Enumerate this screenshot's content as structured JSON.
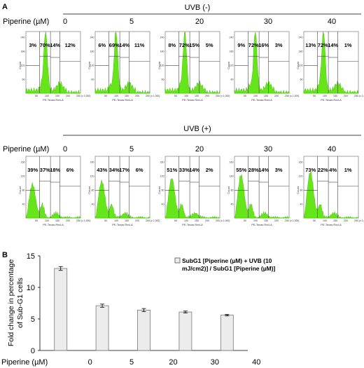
{
  "panel_a": {
    "label": "A",
    "conditions": [
      {
        "title": "UVB (-)",
        "row_label": "Piperine (µM)",
        "doses": [
          "0",
          "5",
          "20",
          "30",
          "40"
        ],
        "gates": [
          [
            "3%",
            "70%",
            "14%",
            "12%"
          ],
          [
            "6%",
            "69%",
            "14%",
            "11%"
          ],
          [
            "8%",
            "72%",
            "15%",
            "5%"
          ],
          [
            "9%",
            "72%",
            "16%",
            "3%"
          ],
          [
            "13%",
            "72%",
            "14%",
            "1%"
          ]
        ],
        "y_axis_label": "Count",
        "x_axis_label": "PE-Texas Red-A",
        "x_ticks": [
          "50",
          "100",
          "150",
          "200",
          "250"
        ],
        "x_unit": "(x 1,000)",
        "y_ticks": [
          "60",
          "120",
          "180",
          "240"
        ],
        "histogram_shape": "g1-peak"
      },
      {
        "title": "UVB (+)",
        "row_label": "Piperine (µM)",
        "doses": [
          "0",
          "5",
          "20",
          "30",
          "40"
        ],
        "gates": [
          [
            "39%",
            "37%",
            "18%",
            "6%"
          ],
          [
            "43%",
            "34%",
            "17%",
            "6%"
          ],
          [
            "51%",
            "33%",
            "14%",
            "2%"
          ],
          [
            "55%",
            "28%",
            "14%",
            "3%"
          ],
          [
            "73%",
            "22%",
            "4%",
            "1%"
          ]
        ],
        "y_axis_label": "Count",
        "x_axis_label": "PE-Texas Red-A",
        "x_ticks": [
          "50",
          "100",
          "150",
          "200",
          "250"
        ],
        "x_unit": "(x 1,000)",
        "y_ticks": [
          "40",
          "80",
          "120",
          "160"
        ],
        "histogram_shape": "subg1-rise"
      }
    ],
    "histogram_color": "#66e61a"
  },
  "panel_b": {
    "label": "B",
    "chart_data": {
      "type": "bar",
      "categories": [
        "0",
        "5",
        "20",
        "30",
        "40"
      ],
      "series": [
        {
          "name": "SubG1 [Piperine (µM) + UVB (10 mJ/cm2)] / SubG1 [Piperine (µM)]",
          "values": [
            13.0,
            7.1,
            6.4,
            6.1,
            5.6
          ],
          "errors": [
            0.3,
            0.25,
            0.25,
            0.15,
            0.12
          ]
        }
      ],
      "xlabel": "Piperine (µM)",
      "ylabel": "Fold change in percentage of Sub-G1 cells",
      "ylim": [
        0,
        15
      ],
      "yticks": [
        0,
        5,
        10,
        15
      ],
      "grid": false,
      "legend": "top-right",
      "bar_color": "#ececec"
    },
    "legend_lines": [
      "SubG1 [Piperine (µM) + UVB (10",
      "mJ/cm2)] / SubG1 [Piperine (µM)]"
    ],
    "ylabel_lines": [
      "Fold change in percentage",
      "of Sub-G1 cells"
    ]
  }
}
